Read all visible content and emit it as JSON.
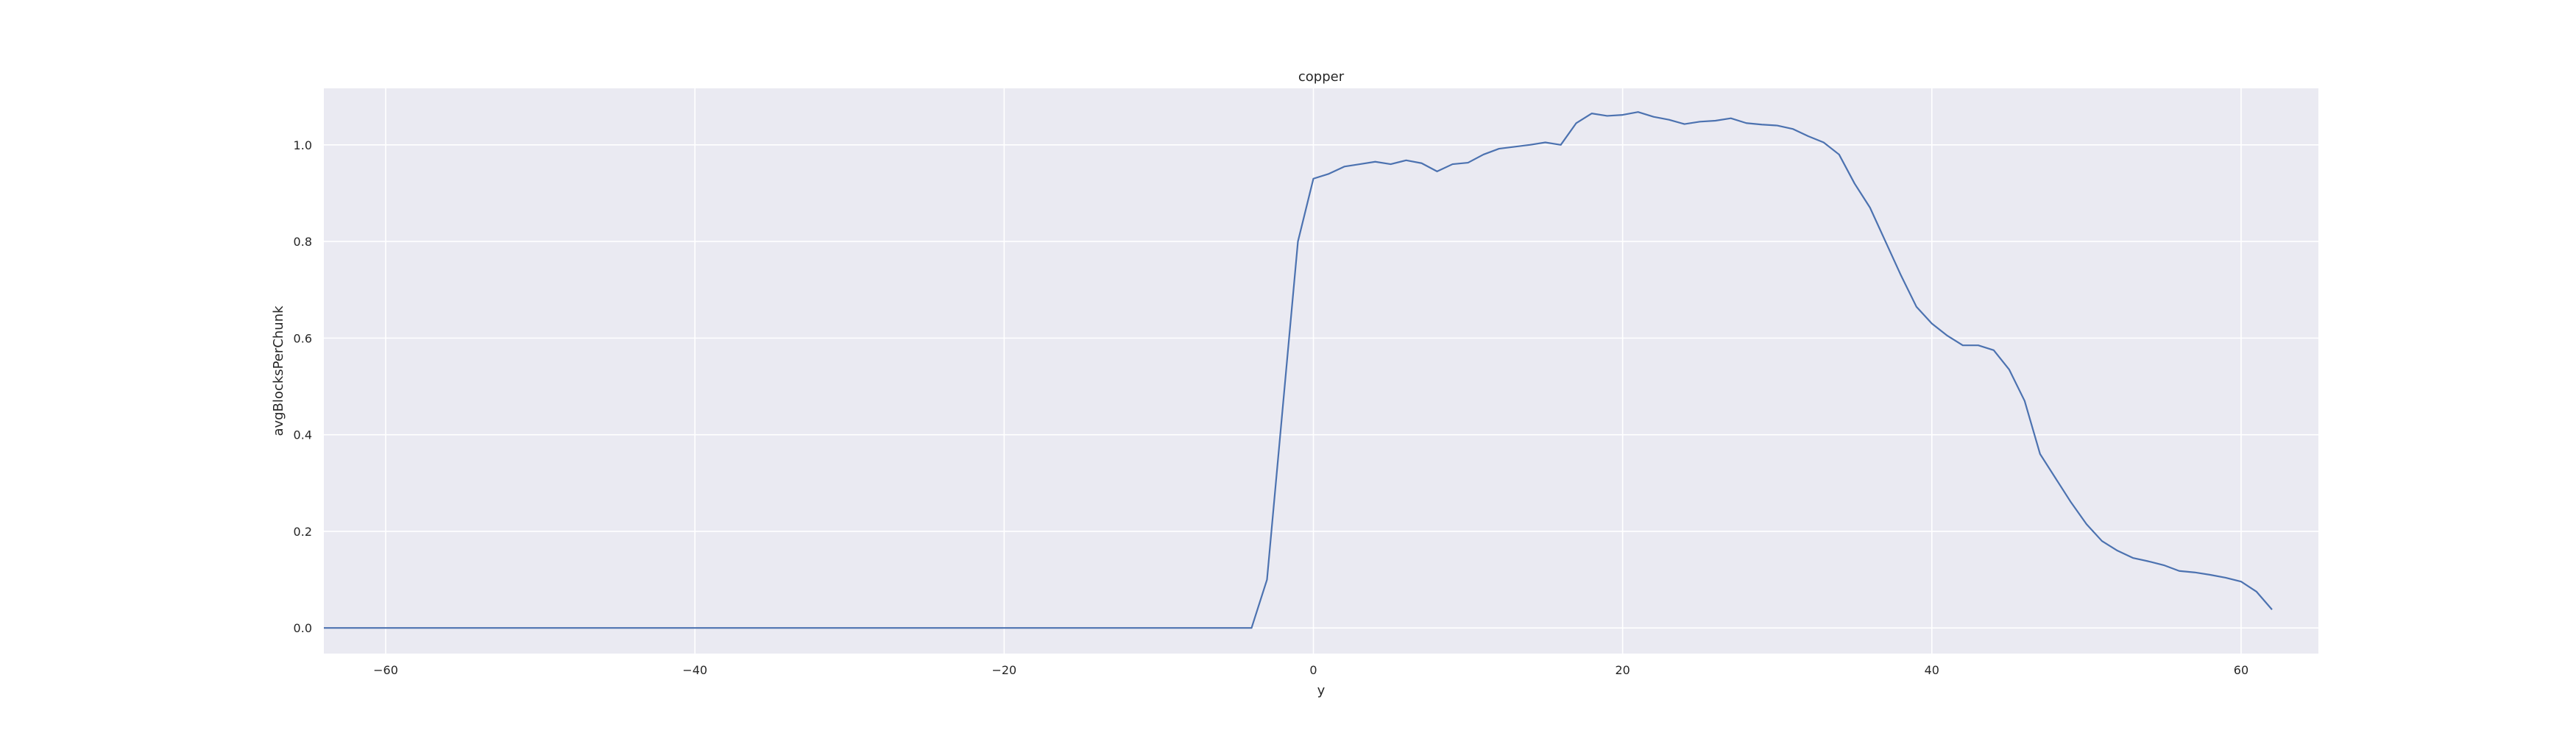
{
  "chart_data": {
    "type": "line",
    "title": "copper",
    "xlabel": "y",
    "ylabel": "avgBlocksPerChunk",
    "xlim": [
      -64,
      65
    ],
    "ylim": [
      -0.053,
      1.117
    ],
    "xticks": [
      -60,
      -40,
      -20,
      0,
      20,
      40,
      60
    ],
    "xtick_labels": [
      "−60",
      "−40",
      "−20",
      "0",
      "20",
      "40",
      "60"
    ],
    "yticks": [
      0.0,
      0.2,
      0.4,
      0.6,
      0.8,
      1.0
    ],
    "ytick_labels": [
      "0.0",
      "0.2",
      "0.4",
      "0.6",
      "0.8",
      "1.0"
    ],
    "grid": true,
    "legend": "none",
    "style": {
      "plot_background": "#eaeaf2",
      "grid_color": "#ffffff",
      "line_color": "#4c72b0"
    },
    "series": [
      {
        "x": [
          -64,
          -63,
          -62,
          -61,
          -60,
          -59,
          -58,
          -57,
          -56,
          -55,
          -54,
          -53,
          -52,
          -51,
          -50,
          -49,
          -48,
          -47,
          -46,
          -45,
          -44,
          -43,
          -42,
          -41,
          -40,
          -39,
          -38,
          -37,
          -36,
          -35,
          -34,
          -33,
          -32,
          -31,
          -30,
          -29,
          -28,
          -27,
          -26,
          -25,
          -24,
          -23,
          -22,
          -21,
          -20,
          -19,
          -18,
          -17,
          -16,
          -15,
          -14,
          -13,
          -12,
          -11,
          -10,
          -9,
          -8,
          -7,
          -6,
          -5,
          -4,
          -3,
          -2,
          -1,
          0,
          1,
          2,
          3,
          4,
          5,
          6,
          7,
          8,
          9,
          10,
          11,
          12,
          13,
          14,
          15,
          16,
          17,
          18,
          19,
          20,
          21,
          22,
          23,
          24,
          25,
          26,
          27,
          28,
          29,
          30,
          31,
          32,
          33,
          34,
          35,
          36,
          37,
          38,
          39,
          40,
          41,
          42,
          43,
          44,
          45,
          46,
          47,
          48,
          49,
          50,
          51,
          52,
          53,
          54,
          55,
          56,
          57,
          58,
          59,
          60,
          61,
          62
        ],
        "y": [
          0,
          0,
          0,
          0,
          0,
          0,
          0,
          0,
          0,
          0,
          0,
          0,
          0,
          0,
          0,
          0,
          0,
          0,
          0,
          0,
          0,
          0,
          0,
          0,
          0,
          0,
          0,
          0,
          0,
          0,
          0,
          0,
          0,
          0,
          0,
          0,
          0,
          0,
          0,
          0,
          0,
          0,
          0,
          0,
          0,
          0,
          0,
          0,
          0,
          0,
          0,
          0,
          0,
          0,
          0,
          0,
          0,
          0,
          0,
          0,
          0,
          0.1,
          0.45,
          0.8,
          0.93,
          0.94,
          0.955,
          0.96,
          0.965,
          0.96,
          0.968,
          0.962,
          0.945,
          0.96,
          0.963,
          0.98,
          0.992,
          0.996,
          1.0,
          1.005,
          1.0,
          1.045,
          1.065,
          1.06,
          1.062,
          1.068,
          1.058,
          1.052,
          1.043,
          1.048,
          1.05,
          1.055,
          1.045,
          1.042,
          1.04,
          1.033,
          1.018,
          1.005,
          0.98,
          0.92,
          0.87,
          0.8,
          0.73,
          0.665,
          0.63,
          0.605,
          0.585,
          0.585,
          0.575,
          0.535,
          0.47,
          0.36,
          0.31,
          0.26,
          0.215,
          0.18,
          0.16,
          0.145,
          0.138,
          0.13,
          0.118,
          0.115,
          0.11,
          0.104,
          0.096,
          0.075,
          0.038
        ]
      }
    ]
  }
}
